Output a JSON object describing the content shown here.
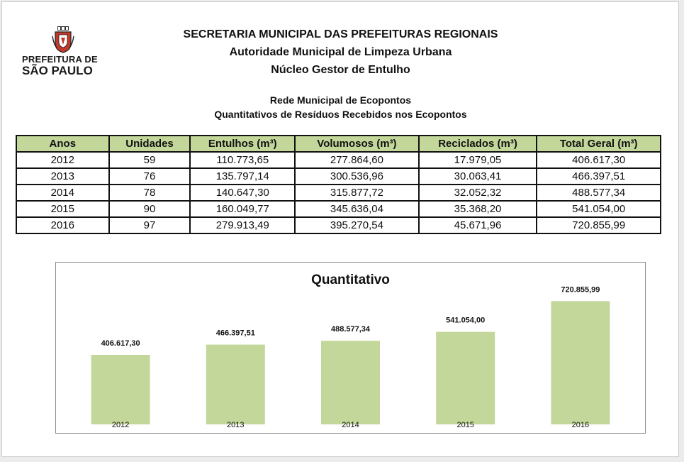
{
  "logo": {
    "line1": "PREFEITURA DE",
    "line2": "SÃO PAULO"
  },
  "header": {
    "line1": "SECRETARIA MUNICIPAL DAS PREFEITURAS REGIONAIS",
    "line2": "Autoridade Municipal de Limpeza Urbana",
    "line3": "Núcleo Gestor de Entulho"
  },
  "subheader": {
    "line1": "Rede Municipal de Ecopontos",
    "line2": "Quantitativos de Resíduos Recebidos nos Ecopontos"
  },
  "table": {
    "columns": [
      "Anos",
      "Unidades",
      "Entulhos (m³)",
      "Volumosos (m³)",
      "Reciclados (m³)",
      "Total Geral (m³)"
    ],
    "rows": [
      [
        "2012",
        "59",
        "110.773,65",
        "277.864,60",
        "17.979,05",
        "406.617,30"
      ],
      [
        "2013",
        "76",
        "135.797,14",
        "300.536,96",
        "30.063,41",
        "466.397,51"
      ],
      [
        "2014",
        "78",
        "140.647,30",
        "315.877,72",
        "32.052,32",
        "488.577,34"
      ],
      [
        "2015",
        "90",
        "160.049,77",
        "345.636,04",
        "35.368,20",
        "541.054,00"
      ],
      [
        "2016",
        "97",
        "279.913,49",
        "395.270,54",
        "45.671,96",
        "720.855,99"
      ]
    ]
  },
  "colors": {
    "header_fill": "#c4d79b",
    "bar_fill": "#c4d79b"
  },
  "chart_data": {
    "type": "bar",
    "title": "Quantitativo",
    "categories": [
      "2012",
      "2013",
      "2014",
      "2015",
      "2016"
    ],
    "values": [
      406617.3,
      466397.51,
      488577.34,
      541054.0,
      720855.99
    ],
    "data_labels": [
      "406.617,30",
      "466.397,51",
      "488.577,34",
      "541.054,00",
      "720.855,99"
    ],
    "ylim": [
      0,
      780000
    ],
    "grid": false,
    "legend": "none"
  }
}
